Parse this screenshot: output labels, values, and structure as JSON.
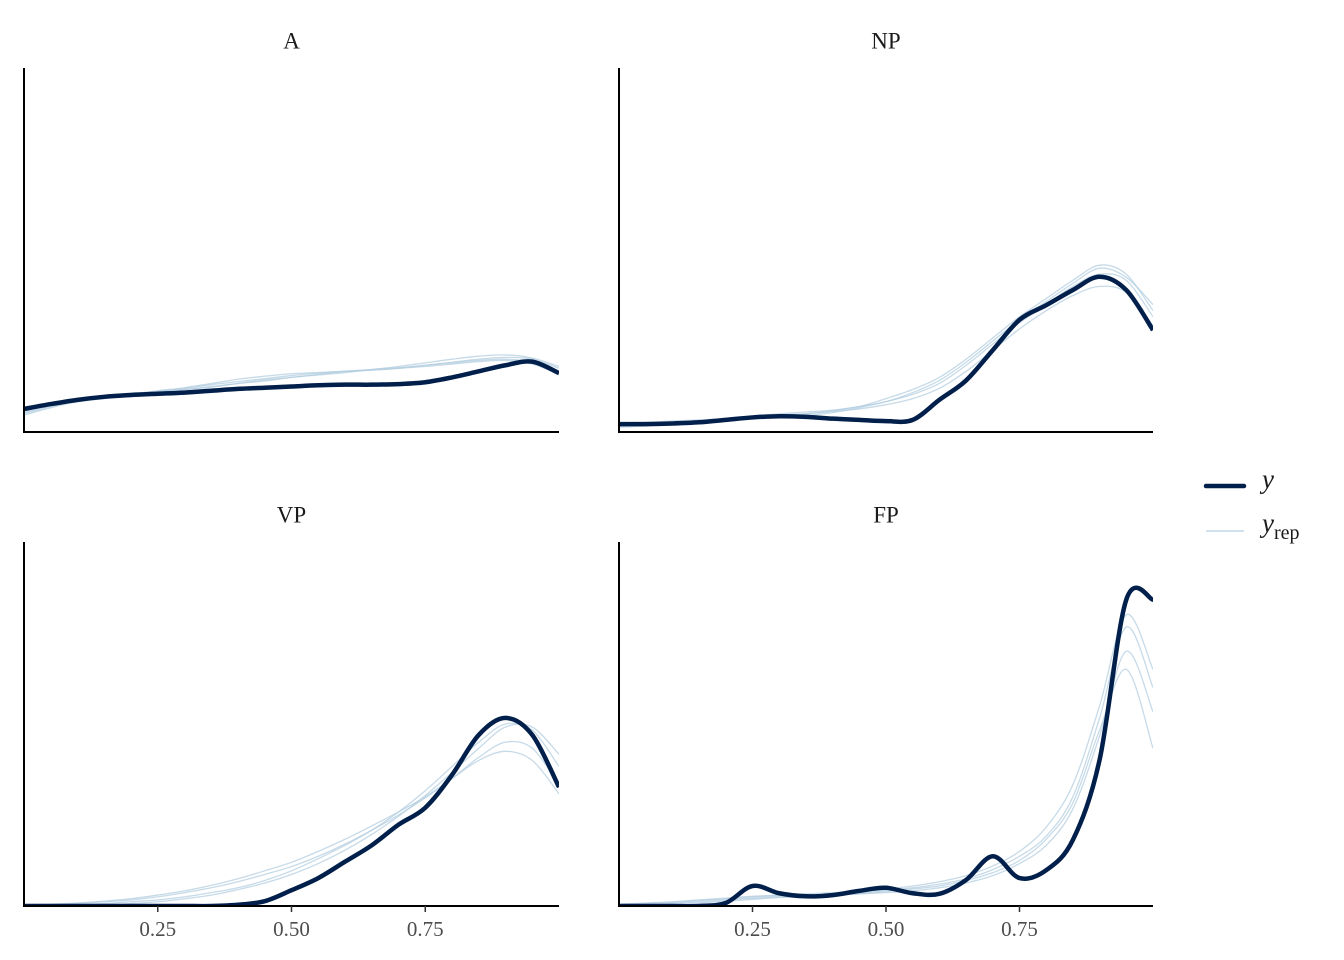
{
  "chart_data": [
    {
      "type": "line",
      "title": "A",
      "x": [
        0,
        0.05,
        0.1,
        0.15,
        0.2,
        0.25,
        0.3,
        0.35,
        0.4,
        0.45,
        0.5,
        0.55,
        0.6,
        0.65,
        0.7,
        0.75,
        0.8,
        0.85,
        0.9,
        0.95,
        1
      ],
      "xlim": [
        0,
        1
      ],
      "ylim": [
        0,
        6
      ],
      "series": [
        {
          "name": "y",
          "color": "#011f4b",
          "values": [
            0.38,
            0.46,
            0.53,
            0.58,
            0.61,
            0.63,
            0.65,
            0.68,
            0.71,
            0.73,
            0.75,
            0.77,
            0.78,
            0.78,
            0.79,
            0.82,
            0.9,
            1.0,
            1.1,
            1.16,
            0.97
          ]
        },
        {
          "name": "y",
          "subscript": "rep",
          "color": "#b3cde0",
          "values": [
            0.3,
            0.42,
            0.52,
            0.58,
            0.63,
            0.67,
            0.72,
            0.78,
            0.83,
            0.88,
            0.93,
            0.97,
            1.0,
            1.03,
            1.06,
            1.1,
            1.14,
            1.18,
            1.2,
            1.15,
            1.0
          ]
        },
        {
          "name": "y",
          "subscript": "rep",
          "color": "#b3cde0",
          "values": [
            0.35,
            0.45,
            0.5,
            0.55,
            0.6,
            0.66,
            0.7,
            0.74,
            0.8,
            0.86,
            0.9,
            0.95,
            1.0,
            1.02,
            1.05,
            1.1,
            1.15,
            1.2,
            1.23,
            1.2,
            1.05
          ]
        },
        {
          "name": "y",
          "subscript": "rep",
          "color": "#b3cde0",
          "values": [
            0.28,
            0.4,
            0.5,
            0.57,
            0.62,
            0.68,
            0.73,
            0.8,
            0.87,
            0.92,
            0.96,
            0.98,
            1.0,
            1.02,
            1.05,
            1.08,
            1.12,
            1.16,
            1.18,
            1.12,
            0.95
          ]
        },
        {
          "name": "y",
          "subscript": "rep",
          "color": "#b3cde0",
          "values": [
            0.32,
            0.44,
            0.55,
            0.6,
            0.64,
            0.66,
            0.7,
            0.75,
            0.8,
            0.84,
            0.9,
            0.94,
            0.98,
            1.03,
            1.08,
            1.14,
            1.2,
            1.25,
            1.27,
            1.22,
            1.08
          ]
        }
      ]
    },
    {
      "type": "line",
      "title": "NP",
      "x": [
        0,
        0.05,
        0.1,
        0.15,
        0.2,
        0.25,
        0.3,
        0.35,
        0.4,
        0.45,
        0.5,
        0.55,
        0.6,
        0.65,
        0.7,
        0.75,
        0.8,
        0.85,
        0.9,
        0.95,
        1
      ],
      "xlim": [
        0,
        1
      ],
      "ylim": [
        0,
        6
      ],
      "series": [
        {
          "name": "y",
          "color": "#011f4b",
          "values": [
            0.13,
            0.13,
            0.14,
            0.16,
            0.2,
            0.24,
            0.26,
            0.25,
            0.22,
            0.2,
            0.18,
            0.2,
            0.53,
            0.85,
            1.35,
            1.85,
            2.09,
            2.34,
            2.56,
            2.34,
            1.68
          ]
        },
        {
          "name": "y",
          "subscript": "rep",
          "color": "#b3cde0",
          "values": [
            0.1,
            0.12,
            0.15,
            0.18,
            0.2,
            0.22,
            0.24,
            0.27,
            0.32,
            0.4,
            0.5,
            0.62,
            0.8,
            1.1,
            1.45,
            1.8,
            2.1,
            2.4,
            2.6,
            2.5,
            1.9
          ]
        },
        {
          "name": "y",
          "subscript": "rep",
          "color": "#b3cde0",
          "values": [
            0.15,
            0.16,
            0.18,
            0.2,
            0.22,
            0.25,
            0.28,
            0.3,
            0.35,
            0.42,
            0.55,
            0.7,
            0.9,
            1.2,
            1.55,
            1.9,
            2.2,
            2.5,
            2.75,
            2.6,
            2.0
          ]
        },
        {
          "name": "y",
          "subscript": "rep",
          "color": "#b3cde0",
          "values": [
            0.08,
            0.1,
            0.13,
            0.16,
            0.2,
            0.23,
            0.26,
            0.3,
            0.34,
            0.38,
            0.45,
            0.55,
            0.72,
            1.0,
            1.35,
            1.7,
            2.0,
            2.25,
            2.4,
            2.3,
            1.75
          ]
        },
        {
          "name": "y",
          "subscript": "rep",
          "color": "#b3cde0",
          "values": [
            0.12,
            0.14,
            0.16,
            0.19,
            0.22,
            0.26,
            0.3,
            0.33,
            0.36,
            0.42,
            0.5,
            0.65,
            0.85,
            1.15,
            1.5,
            1.85,
            2.15,
            2.45,
            2.7,
            2.55,
            2.1
          ]
        }
      ]
    },
    {
      "type": "line",
      "title": "VP",
      "x": [
        0,
        0.05,
        0.1,
        0.15,
        0.2,
        0.25,
        0.3,
        0.35,
        0.4,
        0.45,
        0.5,
        0.55,
        0.6,
        0.65,
        0.7,
        0.75,
        0.8,
        0.85,
        0.9,
        0.95,
        1
      ],
      "xlim": [
        0,
        1
      ],
      "ylim": [
        0,
        6
      ],
      "xticks": [
        0.25,
        {
          "value": 0.5,
          "label": "0.50"
        },
        0.75
      ],
      "series": [
        {
          "name": "y",
          "color": "#011f4b",
          "values": [
            0,
            0,
            0,
            0,
            0,
            0,
            0,
            0,
            0.02,
            0.08,
            0.26,
            0.46,
            0.73,
            1.0,
            1.34,
            1.62,
            2.16,
            2.82,
            3.1,
            2.82,
            1.96
          ]
        },
        {
          "name": "y",
          "subscript": "rep",
          "color": "#b3cde0",
          "values": [
            0.01,
            0.02,
            0.04,
            0.07,
            0.1,
            0.15,
            0.22,
            0.3,
            0.4,
            0.52,
            0.65,
            0.82,
            1.02,
            1.25,
            1.5,
            1.78,
            2.1,
            2.45,
            2.7,
            2.6,
            2.0
          ]
        },
        {
          "name": "y",
          "subscript": "rep",
          "color": "#b3cde0",
          "values": [
            0,
            0.01,
            0.02,
            0.04,
            0.07,
            0.1,
            0.15,
            0.22,
            0.3,
            0.42,
            0.58,
            0.78,
            1.0,
            1.25,
            1.55,
            1.9,
            2.3,
            2.7,
            3.0,
            2.9,
            2.3
          ]
        },
        {
          "name": "y",
          "subscript": "rep",
          "color": "#b3cde0",
          "values": [
            0.02,
            0.03,
            0.05,
            0.08,
            0.12,
            0.18,
            0.25,
            0.34,
            0.45,
            0.58,
            0.72,
            0.9,
            1.1,
            1.32,
            1.55,
            1.8,
            2.1,
            2.4,
            2.55,
            2.4,
            1.85
          ]
        },
        {
          "name": "y",
          "subscript": "rep",
          "color": "#b3cde0",
          "values": [
            0,
            0,
            0.01,
            0.02,
            0.04,
            0.07,
            0.12,
            0.18,
            0.27,
            0.38,
            0.52,
            0.7,
            0.92,
            1.18,
            1.48,
            1.82,
            2.2,
            2.6,
            2.95,
            2.95,
            2.5
          ]
        }
      ]
    },
    {
      "type": "line",
      "title": "FP",
      "x": [
        0,
        0.05,
        0.1,
        0.15,
        0.2,
        0.25,
        0.3,
        0.35,
        0.4,
        0.45,
        0.5,
        0.55,
        0.6,
        0.65,
        0.7,
        0.75,
        0.8,
        0.85,
        0.9,
        0.95,
        1
      ],
      "xlim": [
        0,
        1
      ],
      "ylim": [
        0,
        6
      ],
      "xticks": [
        0.25,
        {
          "value": 0.5,
          "label": "0.50"
        },
        0.75
      ],
      "series": [
        {
          "name": "y",
          "color": "#011f4b",
          "values": [
            0,
            0,
            0,
            0,
            0.05,
            0.33,
            0.21,
            0.16,
            0.18,
            0.25,
            0.3,
            0.21,
            0.2,
            0.43,
            0.82,
            0.46,
            0.59,
            1.09,
            2.41,
            5.05,
            5.05
          ]
        },
        {
          "name": "y",
          "subscript": "rep",
          "color": "#b3cde0",
          "values": [
            0.02,
            0.04,
            0.06,
            0.09,
            0.12,
            0.15,
            0.17,
            0.18,
            0.19,
            0.2,
            0.22,
            0.25,
            0.3,
            0.38,
            0.5,
            0.7,
            1.0,
            1.6,
            2.8,
            4.2,
            3.2
          ]
        },
        {
          "name": "y",
          "subscript": "rep",
          "color": "#b3cde0",
          "values": [
            0.01,
            0.02,
            0.04,
            0.07,
            0.1,
            0.13,
            0.15,
            0.17,
            0.19,
            0.22,
            0.26,
            0.3,
            0.36,
            0.45,
            0.6,
            0.82,
            1.15,
            1.8,
            3.1,
            4.6,
            3.6
          ]
        },
        {
          "name": "y",
          "subscript": "rep",
          "color": "#b3cde0",
          "values": [
            0,
            0.01,
            0.03,
            0.05,
            0.08,
            0.11,
            0.14,
            0.16,
            0.18,
            0.2,
            0.24,
            0.28,
            0.33,
            0.42,
            0.55,
            0.75,
            1.1,
            1.7,
            2.9,
            3.9,
            2.6
          ]
        },
        {
          "name": "y",
          "subscript": "rep",
          "color": "#b3cde0",
          "values": [
            0.03,
            0.05,
            0.07,
            0.1,
            0.13,
            0.16,
            0.18,
            0.2,
            0.22,
            0.24,
            0.28,
            0.33,
            0.4,
            0.5,
            0.66,
            0.9,
            1.3,
            2.0,
            3.3,
            4.8,
            3.9
          ]
        }
      ]
    }
  ]
}
